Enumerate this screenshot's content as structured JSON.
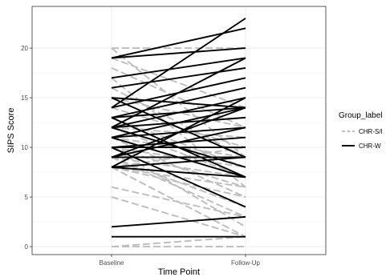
{
  "chart_data": {
    "type": "line",
    "xlabel": "Time Point",
    "ylabel": "SIPS Score",
    "categories": [
      "Baseline",
      "Follow-Up"
    ],
    "ylim": [
      -0.8,
      24.2
    ],
    "yticks": [
      0,
      5,
      10,
      15,
      20
    ],
    "grid": true,
    "legend": {
      "title": "Group_label",
      "position": "right",
      "entries": [
        {
          "label": "CHR-S/I",
          "color": "#bdbdbd",
          "dash": "dashed"
        },
        {
          "label": "CHR-W",
          "color": "#000000",
          "dash": "solid"
        }
      ]
    },
    "series": [
      {
        "group": "CHR-S/I",
        "color": "#bdbdbd",
        "pairs": [
          [
            20,
            20
          ],
          [
            20,
            9
          ],
          [
            19,
            14
          ],
          [
            18,
            12
          ],
          [
            17,
            6
          ],
          [
            16,
            9
          ],
          [
            15,
            12
          ],
          [
            14,
            10
          ],
          [
            13,
            8
          ],
          [
            12,
            7
          ],
          [
            12,
            11
          ],
          [
            11,
            5
          ],
          [
            11,
            9
          ],
          [
            10,
            8
          ],
          [
            10,
            6
          ],
          [
            10,
            2
          ],
          [
            9,
            4
          ],
          [
            9,
            3
          ],
          [
            9,
            7
          ],
          [
            8,
            1
          ],
          [
            8,
            5
          ],
          [
            8,
            6
          ],
          [
            8,
            10
          ],
          [
            6,
            3
          ],
          [
            5,
            1
          ],
          [
            0,
            0
          ],
          [
            0,
            1
          ]
        ]
      },
      {
        "group": "CHR-W",
        "color": "#000000",
        "pairs": [
          [
            19,
            20
          ],
          [
            19,
            22
          ],
          [
            17,
            19
          ],
          [
            16,
            18
          ],
          [
            15,
            14
          ],
          [
            15,
            9
          ],
          [
            14,
            17
          ],
          [
            14,
            23
          ],
          [
            13,
            16
          ],
          [
            13,
            14
          ],
          [
            13,
            7
          ],
          [
            12,
            19
          ],
          [
            12,
            15
          ],
          [
            12,
            8
          ],
          [
            12,
            13
          ],
          [
            11,
            12
          ],
          [
            11,
            14
          ],
          [
            11,
            7
          ],
          [
            10,
            11
          ],
          [
            10,
            4
          ],
          [
            10,
            10
          ],
          [
            9,
            12
          ],
          [
            9,
            9
          ],
          [
            9,
            14
          ],
          [
            8,
            9
          ],
          [
            8,
            7
          ],
          [
            8,
            15
          ],
          [
            2,
            3
          ],
          [
            1,
            1
          ]
        ]
      }
    ]
  }
}
